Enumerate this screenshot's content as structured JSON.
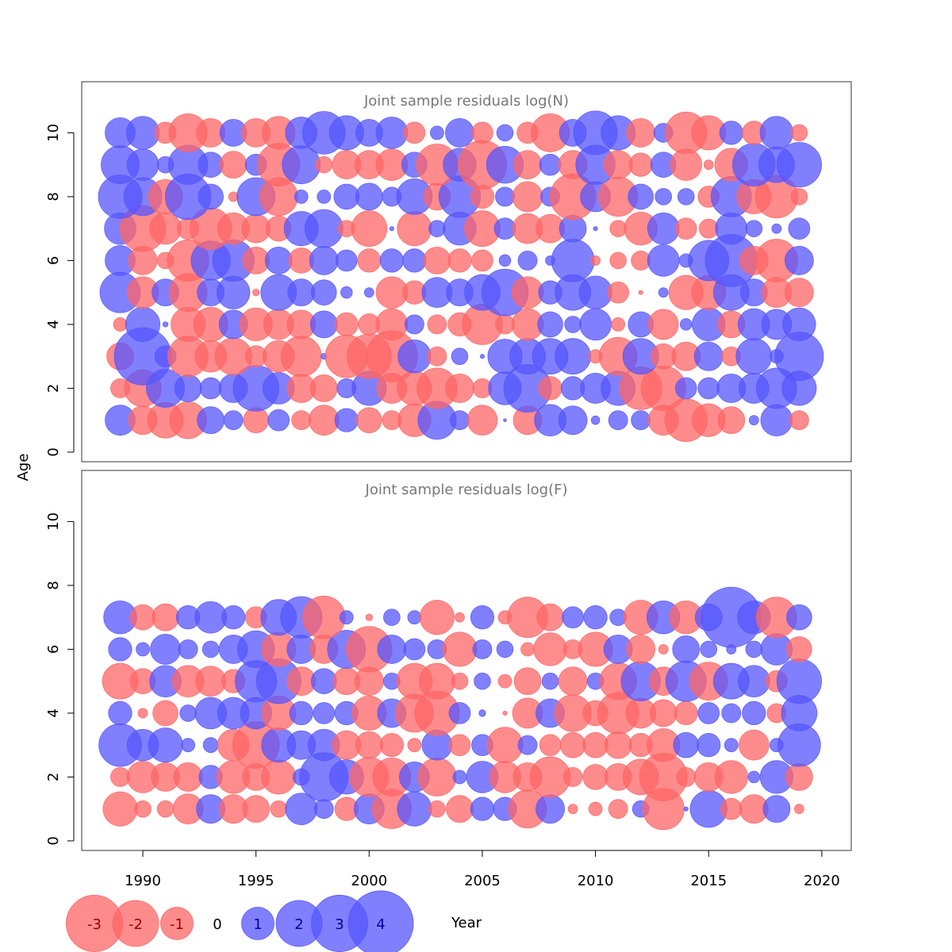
{
  "chart_data": {
    "type": "scatter",
    "subtype": "bubble",
    "xlabel": "Year",
    "ylabel": "Age",
    "x_ticks": [
      1990,
      1995,
      2000,
      2005,
      2010,
      2015,
      2020
    ],
    "y_ticks": [
      0,
      2,
      4,
      6,
      8,
      10
    ],
    "xlim": [
      1987.3,
      2021.3
    ],
    "ylim": [
      -0.3,
      11.6
    ],
    "colors": {
      "positive": "#5555ff",
      "negative": "#ff6666"
    },
    "years": [
      1989,
      1990,
      1991,
      1992,
      1993,
      1994,
      1995,
      1996,
      1997,
      1998,
      1999,
      2000,
      2001,
      2002,
      2003,
      2004,
      2005,
      2006,
      2007,
      2008,
      2009,
      2010,
      2011,
      2012,
      2013,
      2014,
      2015,
      2016,
      2017,
      2018,
      2019
    ],
    "legend": {
      "values": [
        -3,
        -2,
        -1,
        0,
        1,
        2,
        3,
        4
      ],
      "labels": [
        "-3",
        "-2",
        "-1",
        "0",
        "1",
        "2",
        "3",
        "4"
      ]
    },
    "panels": [
      {
        "title": "Joint sample residuals log(N)",
        "ages": [
          1,
          2,
          3,
          4,
          5,
          6,
          7,
          8,
          9,
          10
        ],
        "residuals": [
          [
            1.0,
            -0.9,
            -1.4,
            -1.5,
            0.8,
            0.4,
            -0.7,
            0.5,
            -0.4,
            -1.0,
            0.6,
            -0.7,
            -0.4,
            -1.2,
            1.6,
            0.4,
            -1.0,
            0.01,
            -0.9,
            1.1,
            0.9,
            0.08,
            0.4,
            0.4,
            -1.0,
            -2.0,
            -1.2,
            -0.8,
            0.1,
            1.1,
            -0.4
          ],
          [
            -0.4,
            -1.5,
            1.6,
            0.8,
            0.5,
            0.9,
            2.3,
            1.1,
            -0.9,
            -0.8,
            0.4,
            1.3,
            -1.0,
            -1.3,
            -1.8,
            -0.9,
            -0.4,
            1.2,
            2.5,
            -0.6,
            0.6,
            1.0,
            1.3,
            -2.0,
            -2.2,
            0.5,
            0.5,
            0.9,
            1.0,
            1.8,
            1.3
          ],
          [
            -0.8,
            3.6,
            0.5,
            -1.8,
            -1.1,
            -1.5,
            -0.5,
            -1.1,
            -1.8,
            0.04,
            -2.0,
            -2.2,
            -2.9,
            1.2,
            -0.4,
            0.3,
            0.02,
            1.3,
            1.4,
            1.4,
            1.4,
            -0.2,
            -1.6,
            1.4,
            -0.7,
            -0.9,
            0.9,
            -0.4,
            1.4,
            0.2,
            2.6
          ],
          [
            -0.2,
            1.3,
            0.03,
            -1.3,
            -1.3,
            0.9,
            -1.2,
            -1.0,
            -0.9,
            0.8,
            -0.6,
            -0.5,
            -1.1,
            0.4,
            -0.4,
            -0.6,
            -1.8,
            -0.4,
            -1.1,
            0.7,
            0.3,
            1.1,
            -0.2,
            0.7,
            -1.0,
            0.15,
            1.2,
            -0.8,
            1.1,
            1.0,
            1.2
          ],
          [
            1.8,
            -1.1,
            0.8,
            -1.6,
            0.8,
            1.2,
            -0.05,
            1.4,
            0.8,
            0.7,
            0.15,
            0.1,
            -1.1,
            -0.6,
            1.0,
            0.8,
            1.4,
            2.4,
            -1.1,
            0.6,
            1.4,
            1.2,
            -0.5,
            -0.02,
            0.1,
            -1.3,
            -1.3,
            1.4,
            0.8,
            -1.0,
            -0.9
          ],
          [
            1.0,
            -0.9,
            -0.3,
            -1.9,
            1.7,
            1.9,
            -0.8,
            0.8,
            -0.7,
            0.9,
            0.5,
            -0.6,
            0.6,
            0.6,
            -0.8,
            -0.6,
            -0.5,
            0.15,
            0.4,
            0.1,
            2.0,
            -0.1,
            -0.3,
            -0.4,
            1.1,
            0.2,
            1.8,
            3.0,
            -0.9,
            -2.0,
            0.9
          ],
          [
            1.1,
            -2.3,
            -1.1,
            -0.5,
            -1.9,
            -1.1,
            -0.9,
            -0.7,
            1.3,
            1.6,
            -0.3,
            -1.4,
            0.02,
            -1.3,
            0.3,
            1.2,
            -1.4,
            0.5,
            -1.0,
            -0.9,
            0.8,
            0.02,
            -0.3,
            -1.2,
            1.1,
            -0.5,
            -0.4,
            1.1,
            0.3,
            0.1,
            0.5
          ],
          [
            2.1,
            1.6,
            -1.3,
            2.3,
            0.7,
            -0.1,
            1.6,
            -1.6,
            0.2,
            0.2,
            0.7,
            0.8,
            0.4,
            1.4,
            -0.8,
            1.9,
            -0.6,
            0.4,
            -1.0,
            0.4,
            -2.3,
            1.0,
            -1.7,
            0.7,
            0.3,
            0.3,
            -0.5,
            1.8,
            -1.3,
            -2.0,
            -0.3
          ],
          [
            1.6,
            1.1,
            0.3,
            1.7,
            0.7,
            -0.8,
            0.5,
            -2.0,
            1.6,
            -0.3,
            -0.9,
            -0.9,
            -1.1,
            0.7,
            -1.9,
            1.2,
            -2.6,
            1.5,
            -0.9,
            0.5,
            -0.9,
            1.7,
            -0.9,
            -0.6,
            0.7,
            -1.1,
            -0.1,
            -1.2,
            2.0,
            1.4,
            2.2
          ],
          [
            1.0,
            1.2,
            -0.5,
            -1.6,
            -0.9,
            0.8,
            -0.9,
            -1.2,
            1.1,
            2.0,
            1.3,
            0.8,
            1.1,
            -0.5,
            0.2,
            0.9,
            -0.5,
            0.3,
            -0.5,
            -1.6,
            0.8,
            2.1,
            1.3,
            -0.9,
            0.4,
            -1.9,
            -1.3,
            0.6,
            -0.6,
            1.2,
            -0.3
          ]
        ]
      },
      {
        "title": "Joint sample residuals log(F)",
        "ages": [
          1,
          2,
          3,
          4,
          5,
          6,
          7
        ],
        "residuals": [
          [
            -1.3,
            -0.3,
            -0.3,
            -1.0,
            0.9,
            -0.9,
            -0.8,
            -0.3,
            1.1,
            0.4,
            -0.6,
            1.0,
            -1.7,
            1.3,
            -0.3,
            -0.8,
            0.6,
            0.6,
            -1.6,
            0.9,
            -0.1,
            -0.2,
            -0.4,
            0.3,
            -1.9,
            0.02,
            1.5,
            -0.5,
            -0.9,
            0.8,
            -0.1
          ],
          [
            -0.4,
            -1.1,
            -0.9,
            -0.9,
            0.6,
            -1.2,
            -0.8,
            -1.3,
            0.3,
            2.6,
            1.3,
            -1.7,
            -1.6,
            1.0,
            -1.6,
            0.2,
            1.1,
            -1.1,
            -0.9,
            -1.8,
            -0.4,
            -0.7,
            -0.8,
            -1.4,
            -2.5,
            -0.4,
            -0.9,
            -1.2,
            0.15,
            1.2,
            -0.8
          ],
          [
            2.0,
            1.1,
            1.3,
            0.2,
            0.25,
            -1.1,
            -2.4,
            1.3,
            0.9,
            1.1,
            -0.9,
            -0.8,
            -0.6,
            -0.2,
            1.0,
            -0.5,
            0.5,
            -1.4,
            0.4,
            -0.5,
            -0.7,
            -0.7,
            -0.8,
            -0.6,
            -1.2,
            0.7,
            0.6,
            0.2,
            -1.0,
            0.2,
            2.0
          ],
          [
            0.6,
            -0.1,
            -0.7,
            0.3,
            1.1,
            1.1,
            1.1,
            -1.3,
            0.6,
            0.5,
            0.6,
            -1.3,
            0.9,
            -1.6,
            -2.2,
            0.5,
            0.05,
            -0.02,
            -1.0,
            0.9,
            -1.5,
            -0.7,
            -1.9,
            -1.0,
            -0.8,
            -0.6,
            0.5,
            0.4,
            0.6,
            -0.4,
            1.4
          ],
          [
            -1.4,
            -0.7,
            1.1,
            -1.1,
            -1.0,
            -0.6,
            1.9,
            2.2,
            -0.9,
            0.7,
            -0.8,
            -0.9,
            0.3,
            -1.4,
            -1.4,
            -0.3,
            0.3,
            -0.2,
            -0.8,
            0.3,
            -0.9,
            0.3,
            -1.5,
            1.7,
            -0.9,
            1.8,
            -1.6,
            1.4,
            1.1,
            -0.5,
            2.2
          ],
          [
            0.6,
            0.2,
            1.0,
            0.4,
            0.3,
            0.9,
            1.5,
            -1.3,
            0.9,
            -0.9,
            1.6,
            -2.3,
            0.9,
            0.5,
            0.4,
            -1.3,
            0.4,
            0.3,
            -0.2,
            -1.2,
            -0.4,
            -1.3,
            0.9,
            -0.9,
            -0.1,
            0.8,
            0.3,
            0.1,
            0.3,
            1.1,
            -0.7
          ],
          [
            1.2,
            -0.7,
            -0.8,
            0.6,
            1.1,
            0.6,
            -0.5,
            1.4,
            1.9,
            -2.0,
            0.2,
            -0.05,
            0.3,
            0.2,
            -1.3,
            -0.1,
            0.6,
            -0.2,
            -1.8,
            -0.8,
            0.5,
            0.6,
            0.3,
            -1.3,
            1.2,
            -1.2,
            0.8,
            4.0,
            1.2,
            -1.8,
            0.7
          ]
        ]
      }
    ]
  }
}
